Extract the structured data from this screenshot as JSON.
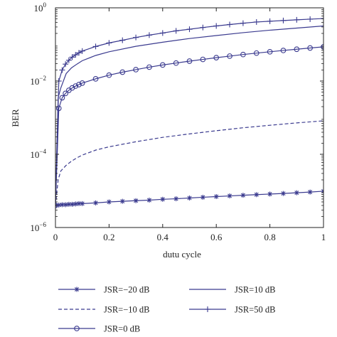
{
  "chart_data": {
    "type": "line",
    "xlabel": "dutu cycle",
    "ylabel": "BER",
    "xlim": [
      0,
      1
    ],
    "ylim": [
      1e-06,
      1
    ],
    "y_scale": "log",
    "grid": false,
    "legend_position": "bottom",
    "x_ticks": [
      {
        "value": 0,
        "label": "0"
      },
      {
        "value": 0.2,
        "label": "0.2"
      },
      {
        "value": 0.4,
        "label": "0.4"
      },
      {
        "value": 0.6,
        "label": "0.6"
      },
      {
        "value": 0.8,
        "label": "0.8"
      },
      {
        "value": 1,
        "label": "1"
      }
    ],
    "y_ticks": [
      {
        "value": 1e-06,
        "base": "10",
        "exp": "−6"
      },
      {
        "value": 0.0001,
        "base": "10",
        "exp": "−4"
      },
      {
        "value": 0.01,
        "base": "10",
        "exp": "−2"
      },
      {
        "value": 1,
        "base": "10",
        "exp": "0"
      }
    ],
    "series": [
      {
        "name": "JSR=−20 dB",
        "line_style": "solid",
        "marker": "asterisk",
        "color": "#3b3b8f",
        "x": [
          0,
          0.0125,
          0.025,
          0.0375,
          0.05,
          0.0625,
          0.075,
          0.0875,
          0.1,
          0.15,
          0.2,
          0.25,
          0.3,
          0.35,
          0.4,
          0.45,
          0.5,
          0.55,
          0.6,
          0.65,
          0.7,
          0.75,
          0.8,
          0.85,
          0.9,
          0.95,
          1
        ],
        "y": [
          4e-06,
          4.1e-06,
          4.2e-06,
          4.2e-06,
          4.3e-06,
          4.3e-06,
          4.4e-06,
          4.5e-06,
          4.5e-06,
          4.7e-06,
          5e-06,
          5.2e-06,
          5.4e-06,
          5.6e-06,
          5.9e-06,
          6.1e-06,
          6.4e-06,
          6.7e-06,
          7e-06,
          7.3e-06,
          7.6e-06,
          7.9e-06,
          8.2e-06,
          8.5e-06,
          8.9e-06,
          9.3e-06,
          9.8e-06
        ]
      },
      {
        "name": "JSR=−10 dB",
        "line_style": "dashed",
        "marker": "none",
        "color": "#3b3b8f",
        "x": [
          0,
          0.01,
          0.02,
          0.04,
          0.06,
          0.08,
          0.1,
          0.15,
          0.2,
          0.3,
          0.4,
          0.5,
          0.6,
          0.7,
          0.8,
          0.9,
          1
        ],
        "y": [
          4e-06,
          2e-05,
          3.5e-05,
          5e-05,
          6.5e-05,
          8e-05,
          9.5e-05,
          0.00013,
          0.00016,
          0.00022,
          0.00029,
          0.00036,
          0.00044,
          0.00053,
          0.00062,
          0.00072,
          0.00082
        ]
      },
      {
        "name": "JSR=0 dB",
        "line_style": "solid",
        "marker": "circle",
        "color": "#3b3b8f",
        "x": [
          0,
          0.0125,
          0.025,
          0.0375,
          0.05,
          0.0625,
          0.075,
          0.0875,
          0.1,
          0.15,
          0.2,
          0.25,
          0.3,
          0.35,
          0.4,
          0.45,
          0.5,
          0.55,
          0.6,
          0.65,
          0.7,
          0.75,
          0.8,
          0.85,
          0.9,
          0.95,
          1
        ],
        "y": [
          4e-06,
          0.0018,
          0.0035,
          0.0046,
          0.0056,
          0.0065,
          0.0073,
          0.008,
          0.0088,
          0.0115,
          0.0145,
          0.0175,
          0.0205,
          0.024,
          0.0275,
          0.031,
          0.035,
          0.039,
          0.0435,
          0.048,
          0.053,
          0.058,
          0.063,
          0.0685,
          0.074,
          0.08,
          0.086
        ]
      },
      {
        "name": "JSR=10 dB",
        "line_style": "solid",
        "marker": "none",
        "color": "#3b3b8f",
        "x": [
          0,
          0.01,
          0.02,
          0.04,
          0.06,
          0.08,
          0.1,
          0.15,
          0.2,
          0.3,
          0.4,
          0.5,
          0.6,
          0.7,
          0.8,
          0.9,
          1
        ],
        "y": [
          4e-06,
          0.0035,
          0.0065,
          0.016,
          0.023,
          0.029,
          0.036,
          0.05,
          0.063,
          0.089,
          0.115,
          0.145,
          0.175,
          0.21,
          0.245,
          0.28,
          0.32
        ]
      },
      {
        "name": "JSR=50 dB",
        "line_style": "solid",
        "marker": "plus",
        "color": "#3b3b8f",
        "x": [
          0,
          0.0125,
          0.025,
          0.0375,
          0.05,
          0.0625,
          0.075,
          0.0875,
          0.1,
          0.15,
          0.2,
          0.25,
          0.3,
          0.35,
          0.4,
          0.45,
          0.5,
          0.55,
          0.6,
          0.65,
          0.7,
          0.75,
          0.8,
          0.85,
          0.9,
          0.95,
          1
        ],
        "y": [
          4e-06,
          0.01,
          0.02,
          0.029,
          0.037,
          0.045,
          0.052,
          0.059,
          0.066,
          0.088,
          0.11,
          0.13,
          0.155,
          0.18,
          0.205,
          0.235,
          0.26,
          0.29,
          0.32,
          0.35,
          0.38,
          0.41,
          0.43,
          0.45,
          0.47,
          0.49,
          0.51
        ]
      }
    ],
    "legend": [
      {
        "series": 0,
        "label": "JSR=−20 dB"
      },
      {
        "series": 3,
        "label": "JSR=10 dB"
      },
      {
        "series": 1,
        "label": "JSR=−10 dB"
      },
      {
        "series": 4,
        "label": "JSR=50 dB"
      },
      {
        "series": 2,
        "label": "JSR=0 dB"
      }
    ]
  }
}
